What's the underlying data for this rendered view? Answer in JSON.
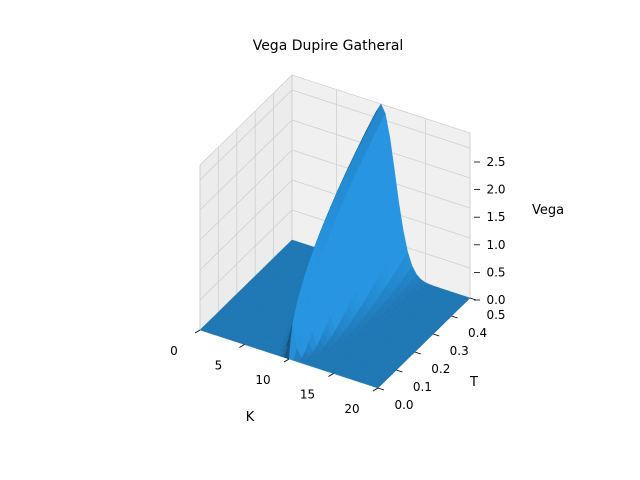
{
  "chart_data": {
    "type": "surface3d",
    "title": "Vega Dupire Gatheral",
    "xlabel": "K",
    "ylabel": "T",
    "zlabel": "Vega",
    "xlim": [
      0,
      20
    ],
    "ylim": [
      0,
      0.5
    ],
    "zlim": [
      0,
      2.75
    ],
    "x_ticks": [
      "0",
      "5",
      "10",
      "15",
      "20"
    ],
    "y_ticks": [
      "0.0",
      "0.1",
      "0.2",
      "0.3",
      "0.4",
      "0.5"
    ],
    "z_ticks": [
      "0.0",
      "0.5",
      "1.0",
      "1.5",
      "2.0",
      "2.5"
    ],
    "x_tick_values": [
      0,
      5,
      10,
      15,
      20
    ],
    "y_tick_values": [
      0,
      0.1,
      0.2,
      0.3,
      0.4,
      0.5
    ],
    "z_tick_values": [
      0,
      0.5,
      1.0,
      1.5,
      2.0,
      2.5
    ],
    "surface": {
      "spot": 10,
      "peak_vega": 2.75,
      "peak_at": {
        "K": 10,
        "T": 0.5
      }
    },
    "grid": true,
    "colors": {
      "surface": "#1f77b4",
      "pane": "#f2f2f2",
      "grid": "#d0d0d0"
    }
  }
}
